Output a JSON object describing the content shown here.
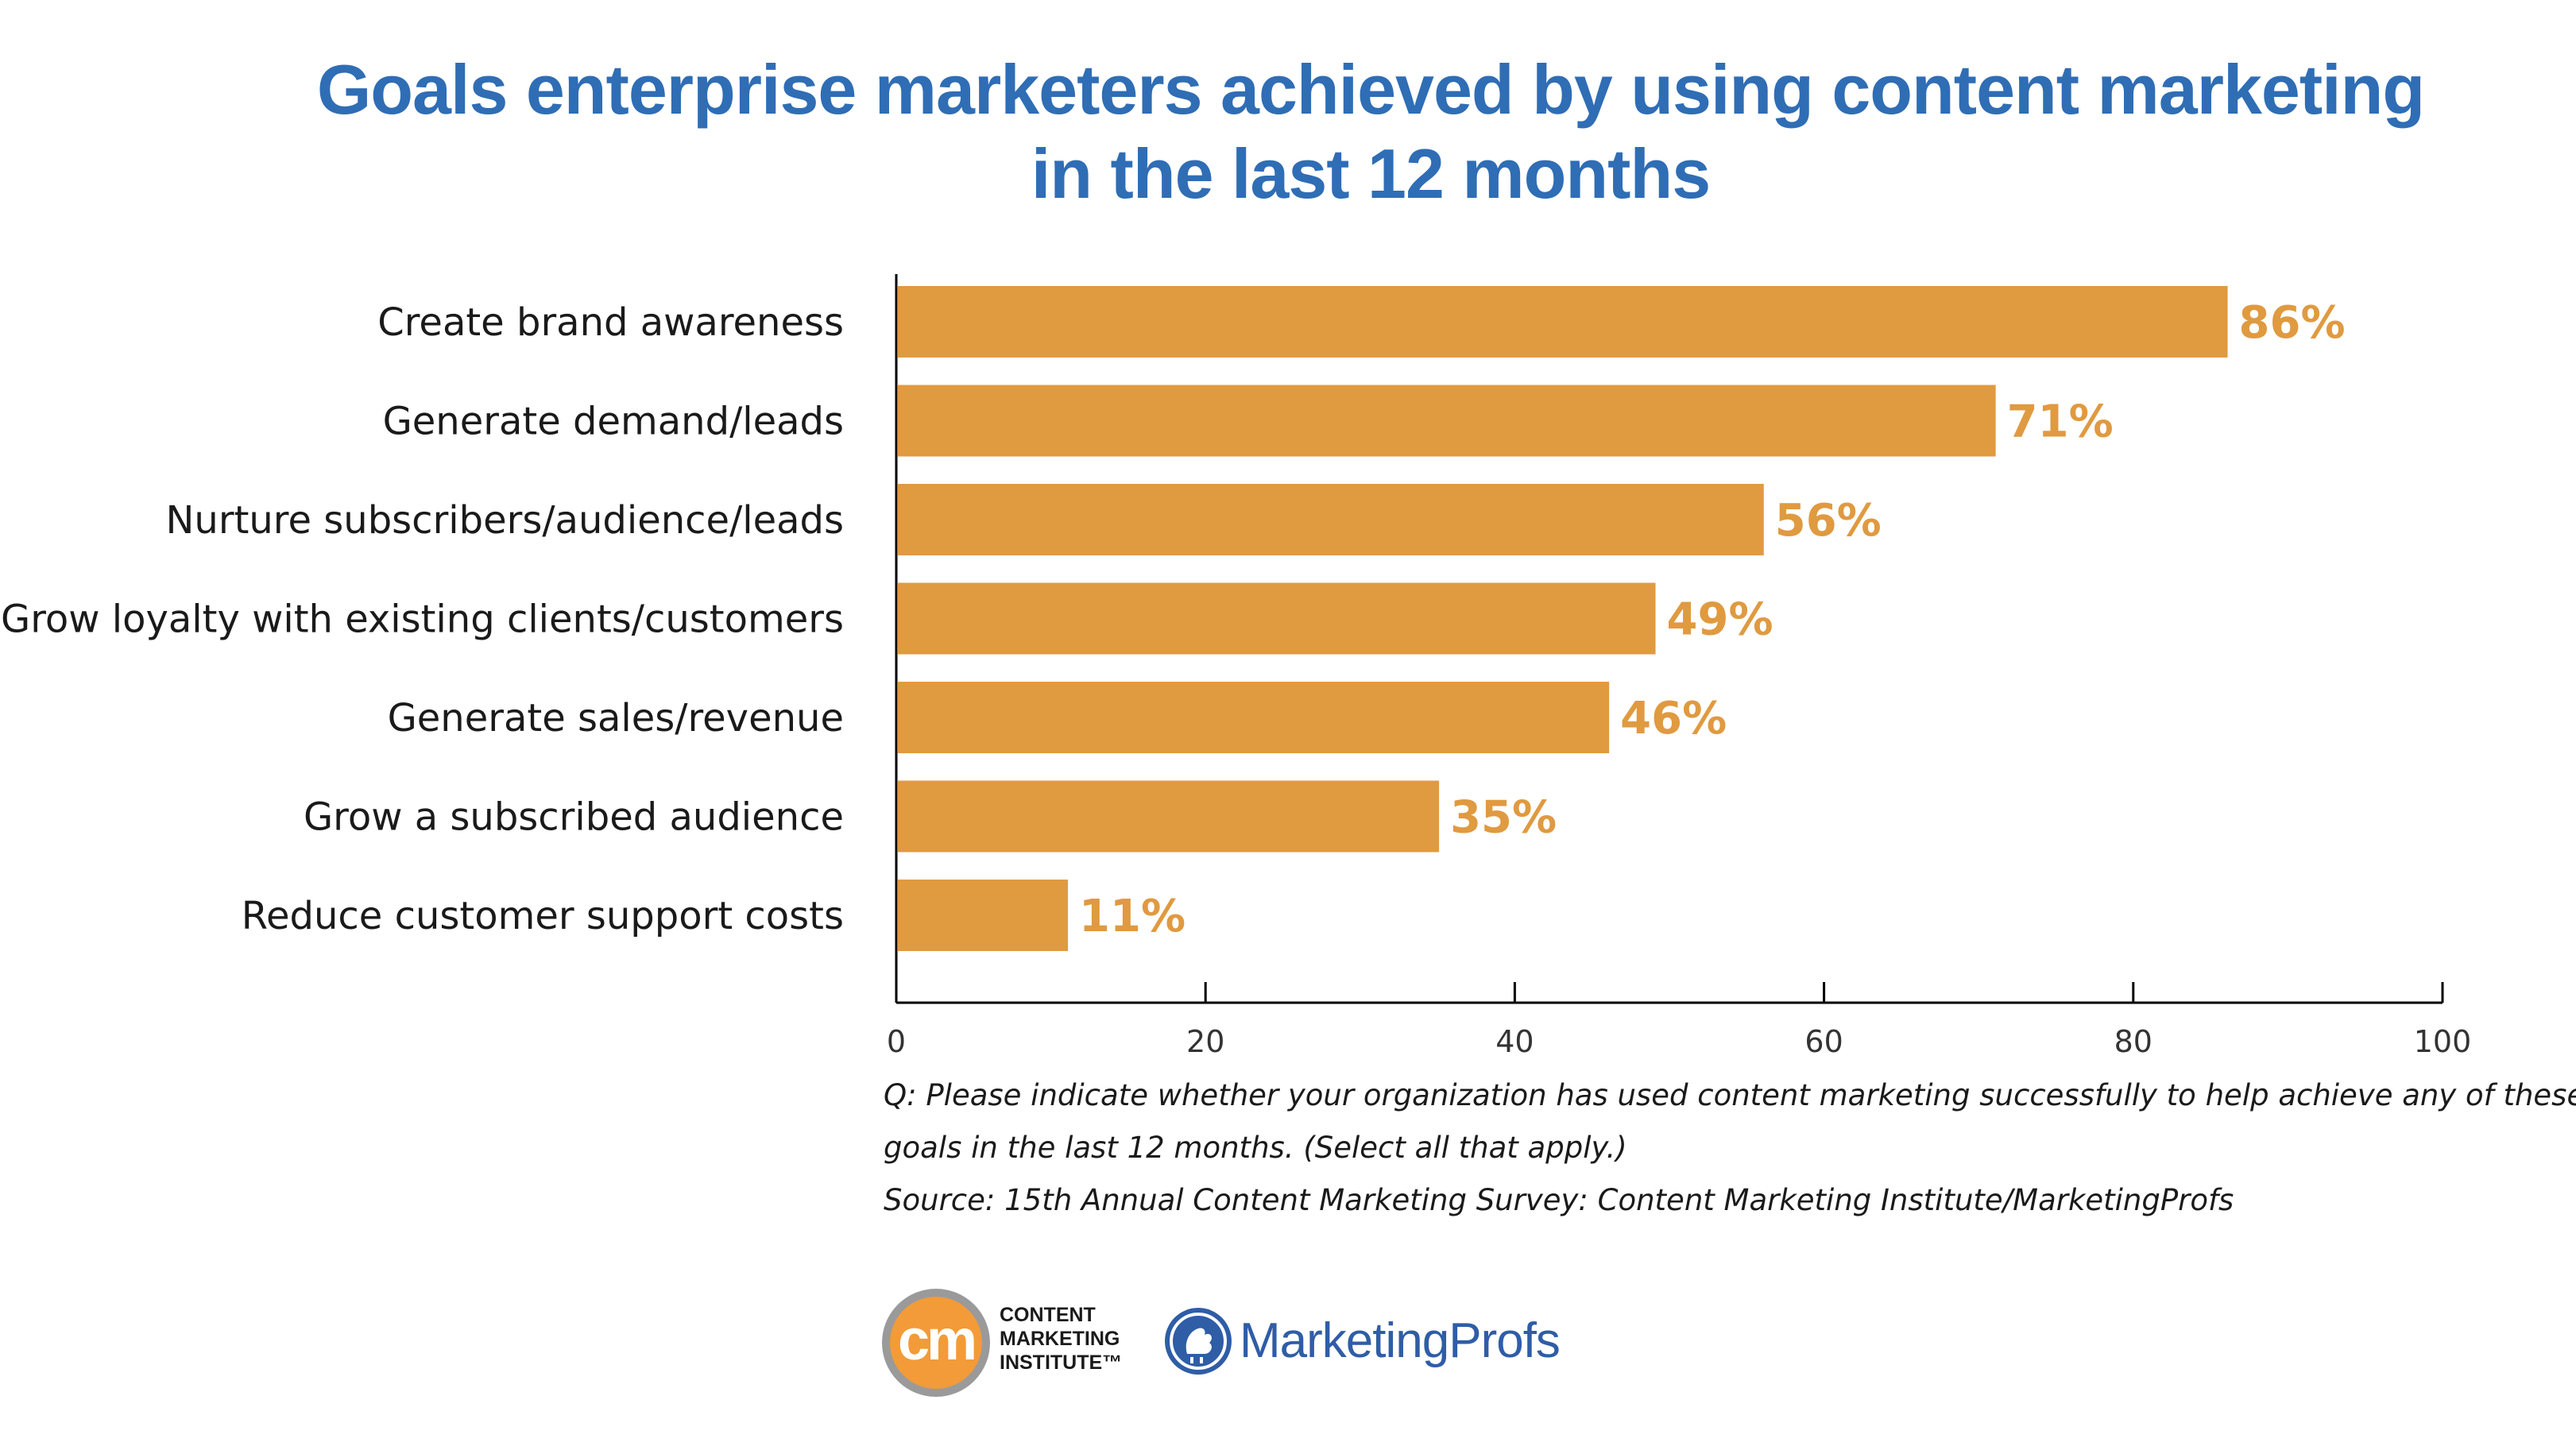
{
  "title_lines": [
    "Goals enterprise marketers achieved by using content marketing",
    "in the last 12 months"
  ],
  "chart_data": {
    "type": "bar",
    "orientation": "horizontal",
    "categories": [
      "Create brand awareness",
      "Generate demand/leads",
      "Nurture subscribers/audience/leads",
      "Grow loyalty with existing clients/customers",
      "Generate sales/revenue",
      "Grow a subscribed audience",
      "Reduce customer support costs"
    ],
    "values": [
      86,
      71,
      56,
      49,
      46,
      35,
      11
    ],
    "value_labels": [
      "86%",
      "71%",
      "56%",
      "49%",
      "46%",
      "35%",
      "11%"
    ],
    "xlim": [
      0,
      100
    ],
    "ticks": [
      0,
      20,
      40,
      60,
      80,
      100
    ],
    "tick_labels": [
      "0",
      "20",
      "40",
      "60",
      "80",
      "100"
    ],
    "bar_color": "#e09a40",
    "label_color": "#e09a40",
    "grid": false
  },
  "notes": {
    "question_line1": "Q: Please indicate whether your organization has used content marketing successfully to help achieve any of these",
    "question_line2": "goals in the last 12 months. (Select all that apply.)",
    "source": "Source: 15th Annual Content Marketing Survey: Content Marketing Institute/MarketingProfs"
  },
  "logos": {
    "cmi": {
      "mark": "cm",
      "line1": "CONTENT",
      "line2": "MARKETING",
      "line3": "INSTITUTE™"
    },
    "marketingprofs": {
      "icon": "rooster-icon",
      "name": "MarketingProfs"
    }
  }
}
